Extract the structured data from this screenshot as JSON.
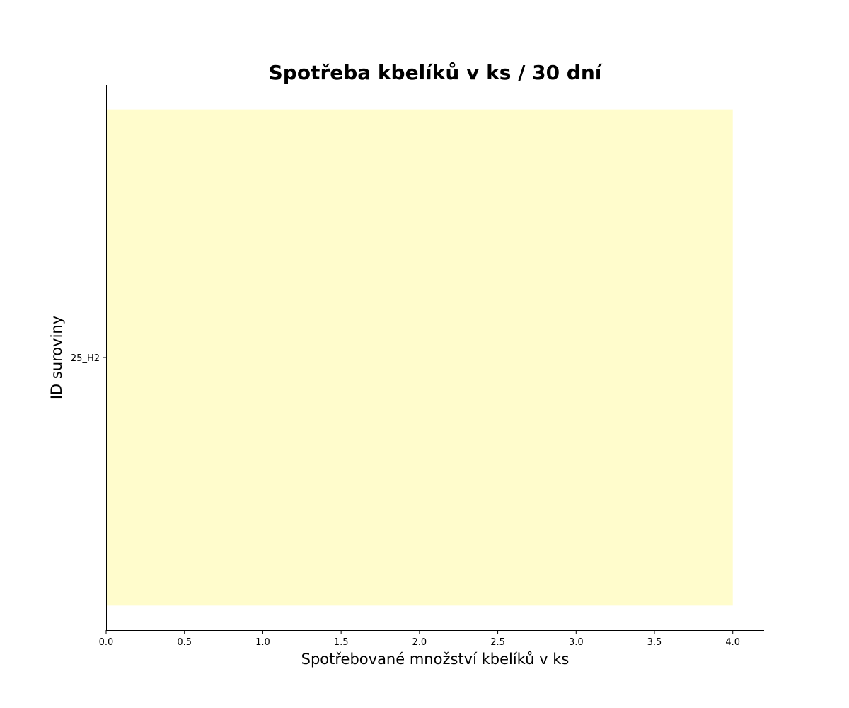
{
  "chart_data": {
    "type": "bar",
    "orientation": "horizontal",
    "title": "Spotřeba kbelíků v ks / 30 dní",
    "xlabel": "Spotřebované množství kbelíků v ks",
    "ylabel": "ID suroviny",
    "categories": [
      "25_H2"
    ],
    "values": [
      4.0
    ],
    "xlim": [
      0.0,
      4.2
    ],
    "xticks": [
      "0.0",
      "0.5",
      "1.0",
      "1.5",
      "2.0",
      "2.5",
      "3.0",
      "3.5",
      "4.0"
    ],
    "bar_color": "#fffccc",
    "grid": false
  }
}
